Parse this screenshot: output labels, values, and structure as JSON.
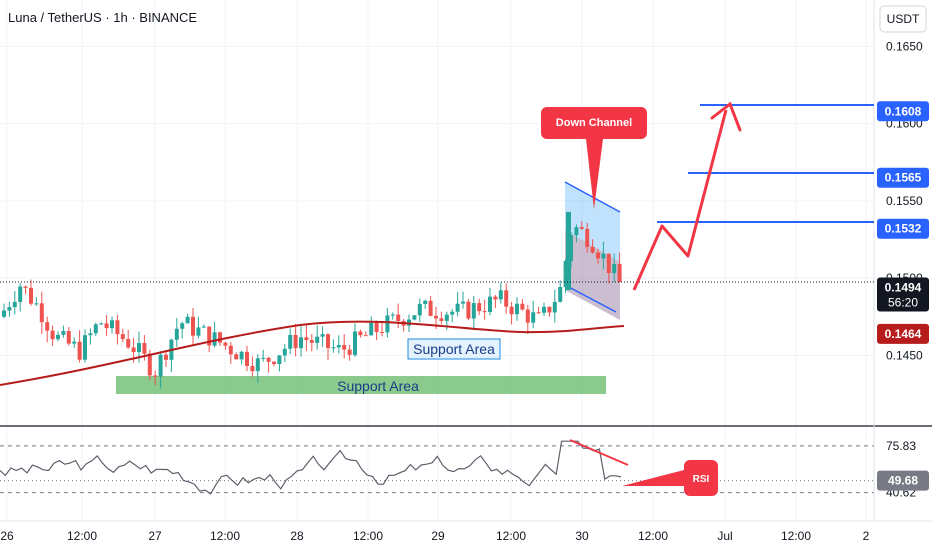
{
  "header": {
    "symbol_title": "Luna / TetherUS · 1h · BINANCE",
    "currency": "USDT"
  },
  "chart_data": {
    "type": "candlestick",
    "price_ticks": [
      "0.1650",
      "0.1600",
      "0.1550",
      "0.1500",
      "0.1450"
    ],
    "price_ticks_values": [
      0.165,
      0.16,
      0.155,
      0.15,
      0.145
    ],
    "price_range": [
      0.1405,
      0.168
    ],
    "time_ticks": [
      "26",
      "12:00",
      "27",
      "12:00",
      "28",
      "12:00",
      "29",
      "12:00",
      "30",
      "12:00",
      "Jul",
      "12:00",
      "2"
    ],
    "price_tags": [
      {
        "label": "0.1608",
        "value": 0.1608,
        "color": "#2962ff"
      },
      {
        "label": "0.1565",
        "value": 0.1565,
        "color": "#2962ff"
      },
      {
        "label": "0.1532",
        "value": 0.1532,
        "color": "#2962ff"
      }
    ],
    "last_price": {
      "label": "0.1494",
      "countdown": "56:20",
      "value": 0.1494
    },
    "ma_tag": {
      "label": "0.1464",
      "value": 0.1464
    },
    "annotations": {
      "down_channel": "Down Channel",
      "support_upper": "Support Area",
      "support_lower": "Support Area",
      "rsi_callout": "RSI"
    },
    "rsi": {
      "ticks": [
        "75.83",
        "40.62"
      ],
      "current": "49.68",
      "levels": [
        75.83,
        49.68,
        40.62
      ]
    },
    "colors": {
      "up": "#26a69a",
      "down": "#ef5350",
      "ma": "#b71c1c",
      "level_line": "#2962ff",
      "callout": "#f23645",
      "support_box": "#4caf50",
      "rsi_line": "#5d606b",
      "channel": "#2196f3"
    }
  }
}
